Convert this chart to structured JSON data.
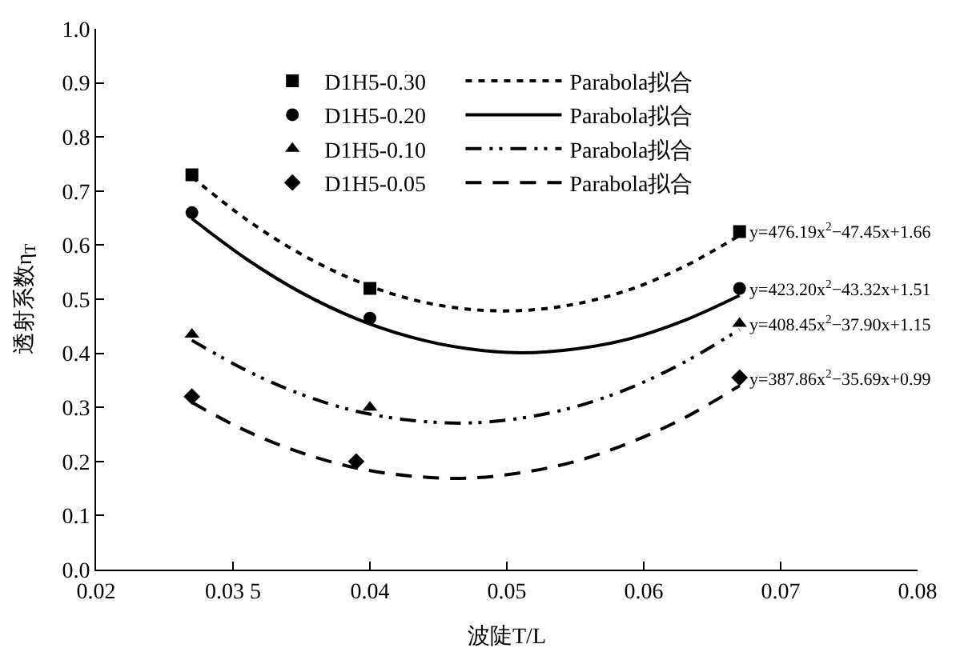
{
  "chart_data": {
    "type": "scatter",
    "xlabel": "波陡T/L",
    "ylabel": "透射系数η$_{T}$",
    "xlim": [
      0.02,
      0.08
    ],
    "xticks": [
      0.02,
      {
        "value": 0.03,
        "label": "0.03 5"
      },
      0.04,
      0.05,
      0.06,
      0.07,
      0.08
    ],
    "ylim": [
      0.0,
      1.0
    ],
    "yticks": [
      {
        "value": 0,
        "label": "0.0"
      },
      0.1,
      0.2,
      0.3,
      0.4,
      0.5,
      0.6,
      0.7,
      0.8,
      0.9,
      {
        "value": 1,
        "label": "1.0"
      }
    ],
    "grid": false,
    "legend": "top",
    "series": [
      {
        "name": "D1H5-0.30",
        "marker": "square",
        "color": "#000000",
        "x": [
          0.027,
          0.04,
          0.067
        ],
        "values": [
          0.73,
          0.52,
          0.625
        ]
      },
      {
        "name": "D1H5-0.20",
        "marker": "circle",
        "color": "#000000",
        "x": [
          0.027,
          0.04,
          0.067
        ],
        "values": [
          0.66,
          0.465,
          0.52
        ]
      },
      {
        "name": "D1H5-0.10",
        "marker": "triangle",
        "color": "#000000",
        "x": [
          0.027,
          0.04,
          0.067
        ],
        "values": [
          0.435,
          0.3,
          0.455
        ]
      },
      {
        "name": "D1H5-0.05",
        "marker": "diamond",
        "color": "#000000",
        "x": [
          0.027,
          0.039,
          0.067
        ],
        "values": [
          0.32,
          0.2,
          0.355
        ]
      },
      {
        "name": "Parabola拟合",
        "type": "line",
        "line_style": "dotted",
        "color": "#000000",
        "x": [
          0.027,
          0.031,
          0.035,
          0.039,
          0.043,
          0.047,
          0.051,
          0.055,
          0.059,
          0.063,
          0.067
        ],
        "values": [
          0.726,
          0.647,
          0.583,
          0.534,
          0.5,
          0.482,
          0.479,
          0.491,
          0.518,
          0.561,
          0.618
        ]
      },
      {
        "name": "Parabola拟合",
        "type": "line",
        "line_style": "solid",
        "color": "#000000",
        "x": [
          0.027,
          0.031,
          0.035,
          0.039,
          0.043,
          0.047,
          0.051,
          0.055,
          0.059,
          0.063,
          0.067
        ],
        "values": [
          0.649,
          0.574,
          0.512,
          0.464,
          0.43,
          0.409,
          0.401,
          0.408,
          0.427,
          0.461,
          0.507
        ]
      },
      {
        "name": "Parabola拟合",
        "type": "line",
        "line_style": "dashdot",
        "color": "#000000",
        "x": [
          0.027,
          0.031,
          0.035,
          0.039,
          0.043,
          0.047,
          0.051,
          0.055,
          0.059,
          0.063,
          0.067
        ],
        "values": [
          0.424,
          0.368,
          0.324,
          0.293,
          0.276,
          0.271,
          0.28,
          0.301,
          0.336,
          0.384,
          0.444
        ]
      },
      {
        "name": "Parabola拟合",
        "type": "line",
        "line_style": "dashed",
        "color": "#000000",
        "x": [
          0.027,
          0.031,
          0.035,
          0.039,
          0.043,
          0.047,
          0.051,
          0.055,
          0.059,
          0.063,
          0.067
        ],
        "values": [
          0.309,
          0.256,
          0.216,
          0.188,
          0.173,
          0.169,
          0.179,
          0.2,
          0.235,
          0.281,
          0.34
        ]
      }
    ],
    "annotations": [
      "y=476.19x$^{2}$−47.45x+1.66",
      "y=423.20x$^{2}$−43.32x+1.51",
      "y=408.45x$^{2}$−37.90x+1.15",
      "y=387.86x$^{2}$−35.69x+0.99"
    ]
  }
}
